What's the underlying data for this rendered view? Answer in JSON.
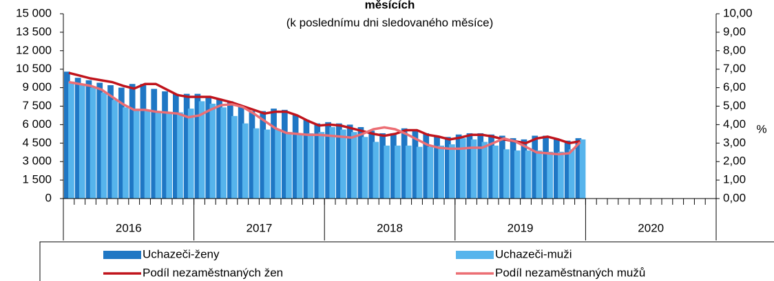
{
  "chart_data": {
    "type": "bar-line",
    "title": "měsících",
    "subtitle": "(k poslednímu dni sledovaného měsíce)",
    "y2label": "%",
    "categories": [
      null,
      null,
      null,
      null,
      null,
      null,
      null,
      null,
      null,
      null,
      null,
      null,
      null,
      null,
      null,
      null,
      null,
      null,
      null,
      null,
      null,
      null,
      null,
      null,
      null,
      null,
      null,
      null,
      null,
      null,
      null,
      null,
      null,
      null,
      null,
      null,
      null,
      null,
      null,
      null,
      null,
      null,
      null,
      null,
      null,
      null,
      null,
      null,
      null,
      null,
      null,
      null,
      null,
      null,
      null,
      null,
      null,
      null,
      null,
      null
    ],
    "groups": [
      "2016",
      "2017",
      "2018",
      "2019",
      "2020"
    ],
    "ylim": [
      0,
      15000
    ],
    "yticks": [
      0,
      {
        "value": 1500,
        "label": "1 500"
      },
      {
        "value": 3000,
        "label": "3 000"
      },
      {
        "value": 4500,
        "label": "4 500"
      },
      {
        "value": 6000,
        "label": "6 000"
      },
      {
        "value": 7500,
        "label": "7 500"
      },
      {
        "value": 9000,
        "label": "9 000"
      },
      {
        "value": 10500,
        "label": "10 500"
      },
      {
        "value": 12000,
        "label": "12 000"
      },
      {
        "value": 13500,
        "label": "13 500"
      },
      {
        "value": 15000,
        "label": "15 000"
      }
    ],
    "y2lim": [
      0,
      10
    ],
    "y2ticks": [
      {
        "value": 0,
        "label": "0,00"
      },
      {
        "value": 1,
        "label": "1,00"
      },
      {
        "value": 2,
        "label": "2,00"
      },
      {
        "value": 3,
        "label": "3,00"
      },
      {
        "value": 4,
        "label": "4,00"
      },
      {
        "value": 5,
        "label": "5,00"
      },
      {
        "value": 6,
        "label": "6,00"
      },
      {
        "value": 7,
        "label": "7,00"
      },
      {
        "value": 8,
        "label": "8,00"
      },
      {
        "value": 9,
        "label": "9,00"
      },
      {
        "value": 10,
        "label": "10,00"
      }
    ],
    "series": [
      {
        "name": "Uchazeči-ženy",
        "color": "#1f77c4",
        "kind": "bar",
        "values": [
          10300,
          9800,
          9600,
          9400,
          9200,
          9000,
          9300,
          9300,
          8900,
          8700,
          8500,
          8500,
          8500,
          8300,
          8100,
          7900,
          7500,
          7100,
          7100,
          7300,
          7200,
          6800,
          6400,
          6100,
          6200,
          6100,
          6000,
          5800,
          5500,
          5300,
          5300,
          5700,
          5600,
          5300,
          5100,
          5000,
          5200,
          5300,
          5300,
          5200,
          5100,
          4900,
          4800,
          5100,
          5100,
          4800,
          4700,
          4900,
          null,
          null,
          null,
          null,
          null,
          null,
          null,
          null,
          null,
          null,
          null,
          null
        ]
      },
      {
        "name": "Uchazeči-muži",
        "color": "#56b4ec",
        "kind": "bar",
        "values": [
          9500,
          9300,
          9000,
          8600,
          8000,
          7400,
          7300,
          7200,
          7000,
          6900,
          7000,
          7300,
          7900,
          7700,
          7400,
          6700,
          6100,
          5700,
          5600,
          5600,
          5400,
          5300,
          5300,
          5400,
          5800,
          5600,
          5400,
          5000,
          4600,
          4300,
          4300,
          4300,
          4200,
          4200,
          4300,
          4400,
          4900,
          4800,
          4600,
          4300,
          4000,
          3900,
          3900,
          3900,
          3800,
          3800,
          4000,
          4800,
          null,
          null,
          null,
          null,
          null,
          null,
          null,
          null,
          null,
          null,
          null,
          null
        ]
      },
      {
        "name": "Podíl nezaměstnaných žen",
        "color": "#c0141c",
        "kind": "line",
        "axis": "y2",
        "values": [
          6.8,
          6.65,
          6.5,
          6.4,
          6.3,
          6.1,
          5.95,
          6.2,
          6.2,
          5.9,
          5.6,
          5.5,
          5.5,
          5.5,
          5.35,
          5.2,
          5.0,
          4.8,
          4.6,
          4.7,
          4.7,
          4.5,
          4.2,
          3.95,
          4.0,
          3.95,
          3.8,
          3.65,
          3.5,
          3.4,
          3.5,
          3.7,
          3.7,
          3.45,
          3.35,
          3.2,
          3.3,
          3.45,
          3.45,
          3.35,
          3.2,
          3.1,
          3.0,
          3.25,
          3.35,
          3.2,
          3.0,
          3.1,
          null,
          null,
          null,
          null,
          null,
          null,
          null,
          null,
          null,
          null,
          null,
          null
        ]
      },
      {
        "name": "Podíl nezaměstnaných mužů",
        "color": "#ec6e74",
        "kind": "line",
        "axis": "y2",
        "values": [
          6.3,
          6.2,
          6.1,
          5.9,
          5.5,
          5.1,
          4.8,
          4.8,
          4.7,
          4.65,
          4.6,
          4.4,
          4.5,
          4.8,
          5.05,
          5.1,
          4.95,
          4.6,
          4.2,
          3.8,
          3.55,
          3.5,
          3.45,
          3.45,
          3.4,
          3.35,
          3.3,
          3.5,
          3.75,
          3.85,
          3.75,
          3.5,
          3.2,
          2.9,
          2.75,
          2.7,
          2.7,
          2.75,
          2.75,
          3.0,
          3.25,
          3.1,
          2.8,
          2.5,
          2.45,
          2.4,
          2.45,
          3.05,
          null,
          null,
          null,
          null,
          null,
          null,
          null,
          null,
          null,
          null,
          null,
          null
        ]
      }
    ]
  }
}
